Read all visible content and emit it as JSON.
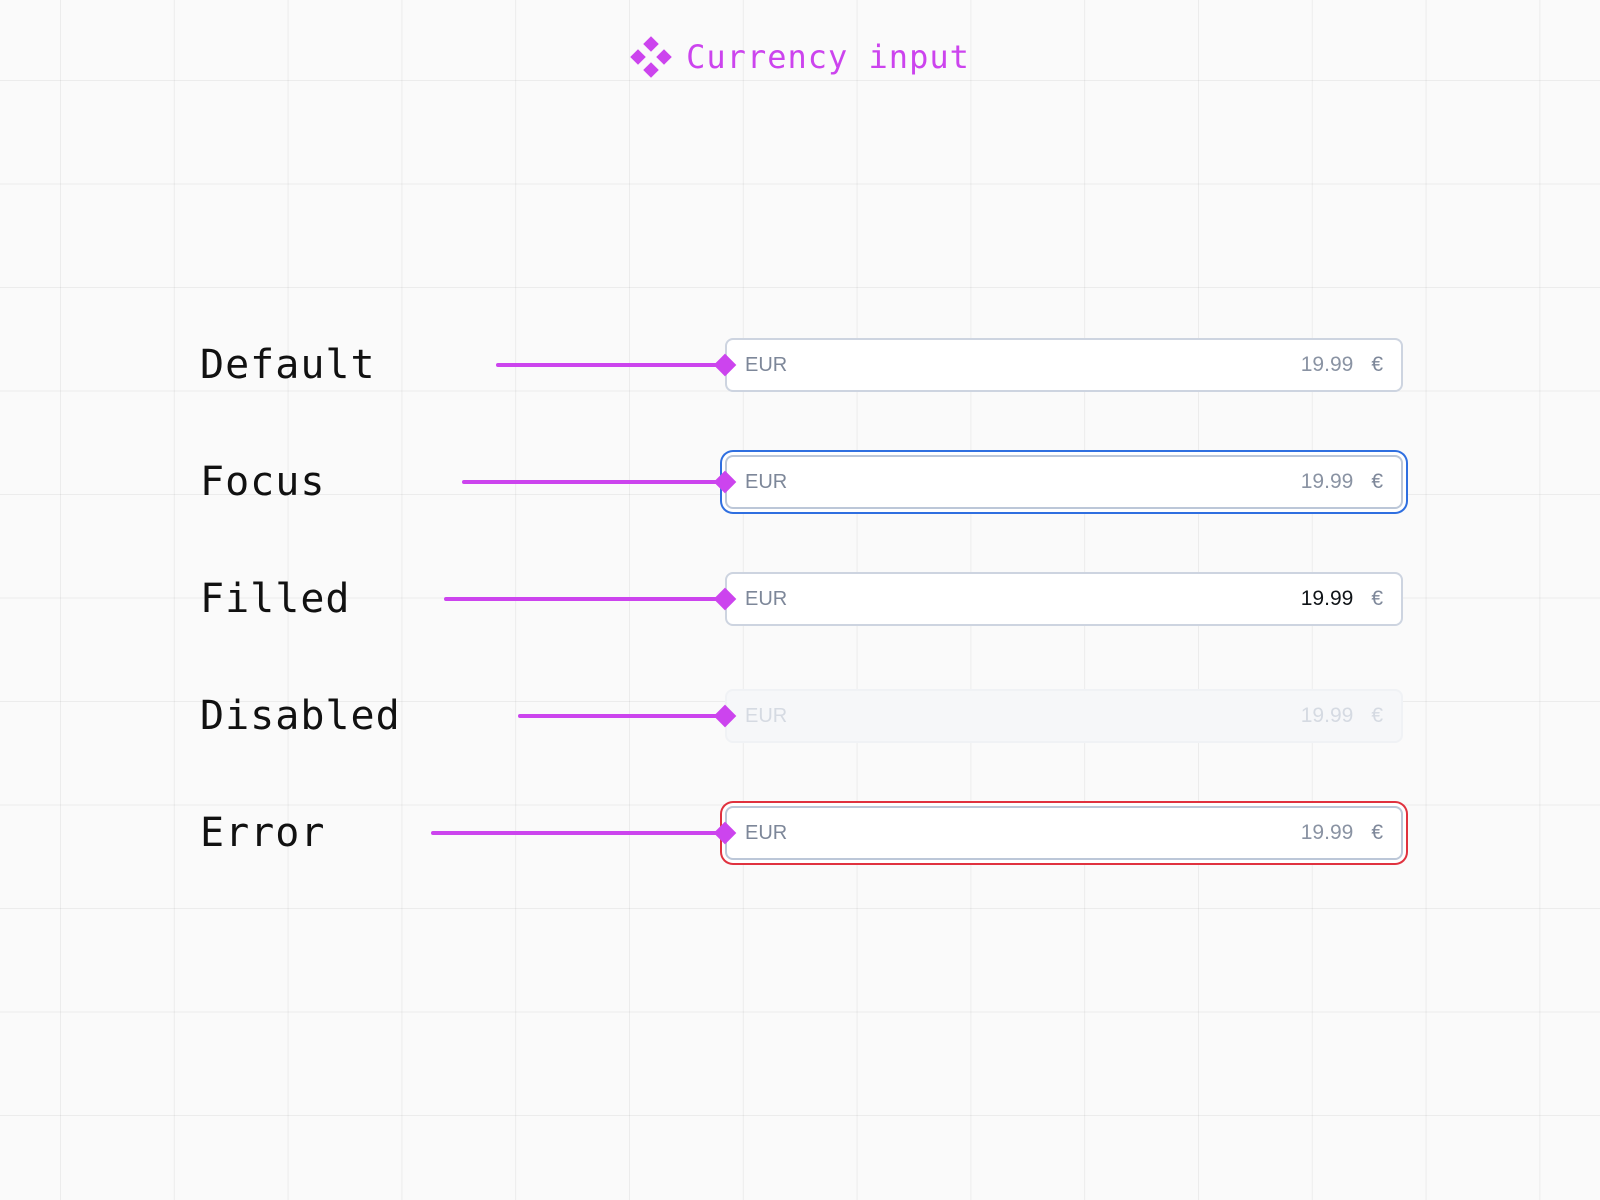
{
  "header": {
    "title": "Currency input",
    "logo_icon": "diamond-cluster-icon"
  },
  "colors": {
    "accent": "#cc44ee",
    "focus_ring": "#2f6fe0",
    "error_ring": "#e0323f",
    "field_border": "#cdd4e0",
    "placeholder_text": "#8a93a3",
    "filled_text": "#101418",
    "disabled_text": "#d5dae2"
  },
  "states": [
    {
      "label": "Default",
      "currency_code": "EUR",
      "amount": "19.99",
      "symbol": "€"
    },
    {
      "label": "Focus",
      "currency_code": "EUR",
      "amount": "19.99",
      "symbol": "€"
    },
    {
      "label": "Filled",
      "currency_code": "EUR",
      "amount": "19.99",
      "symbol": "€"
    },
    {
      "label": "Disabled",
      "currency_code": "EUR",
      "amount": "19.99",
      "symbol": "€"
    },
    {
      "label": "Error",
      "currency_code": "EUR",
      "amount": "19.99",
      "symbol": "€"
    }
  ]
}
